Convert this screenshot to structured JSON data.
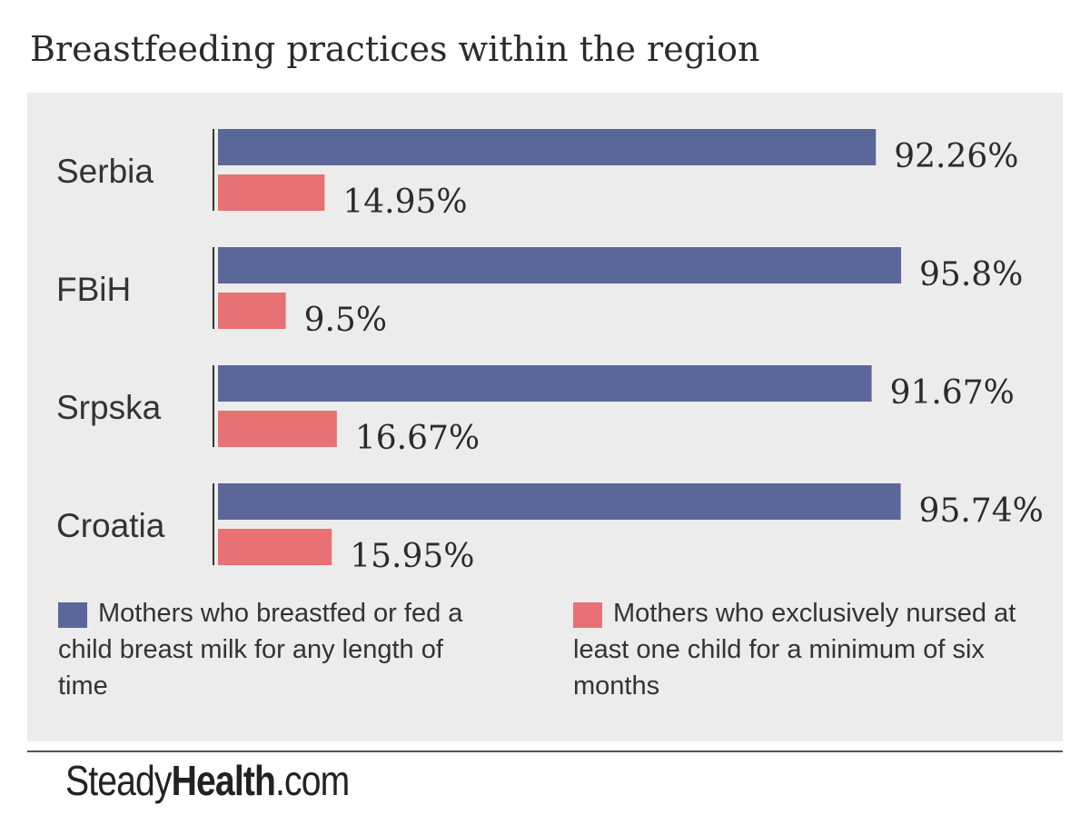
{
  "title": "Breastfeeding practices within the region",
  "brand": {
    "part1": "Steady",
    "part2": "Health",
    "part3": ".com"
  },
  "colors": {
    "series1": "#5b6699",
    "series2": "#e87173",
    "panel": "#ececec"
  },
  "legend": [
    {
      "label": "Mothers who breastfed or fed a child breast milk for any length of time",
      "color": "#5b6699"
    },
    {
      "label": "Mothers who exclusively nursed at least one child for a minimum of six months",
      "color": "#e87173"
    }
  ],
  "chart_data": {
    "type": "bar",
    "orientation": "horizontal",
    "title": "Breastfeeding practices within the region",
    "categories": [
      "Serbia",
      "FBiH",
      "Srpska",
      "Croatia"
    ],
    "series": [
      {
        "name": "Mothers who breastfed or fed a child breast milk for any length of time",
        "values": [
          92.26,
          95.8,
          91.67,
          95.74
        ],
        "labels": [
          "92.26%",
          "95.8%",
          "91.67%",
          "95.74%"
        ]
      },
      {
        "name": "Mothers who exclusively nursed at least one child for a minimum of six months",
        "values": [
          14.95,
          9.5,
          16.67,
          15.95
        ],
        "labels": [
          "14.95%",
          "9.5%",
          "16.67%",
          "15.95%"
        ]
      }
    ],
    "xlim": [
      0,
      100
    ],
    "grid": false,
    "legend_position": "bottom"
  }
}
